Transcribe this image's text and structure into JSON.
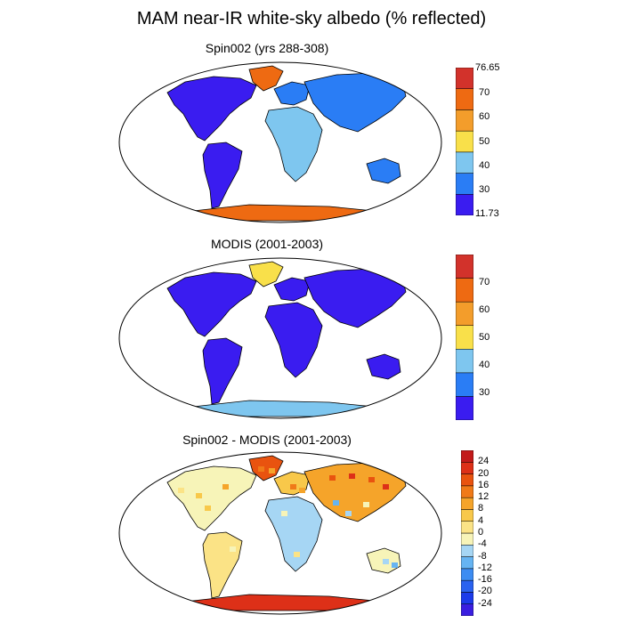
{
  "figure": {
    "title": "MAM near-IR white-sky albedo (% reflected)",
    "colors": {
      "ocean": "#ffffff",
      "outline": "#000000"
    }
  },
  "panels": [
    {
      "key": "spin",
      "title": "Spin002 (yrs 288-308)",
      "colorbar": {
        "labels": [
          "76.65",
          "70",
          "60",
          "50",
          "40",
          "30",
          "11.73"
        ],
        "colors": [
          "#3a1cf0",
          "#2a7df5",
          "#7ec6ef",
          "#f9e04a",
          "#f39d2b",
          "#ee6a12",
          "#d2322b"
        ]
      }
    },
    {
      "key": "modis",
      "title": "MODIS (2001-2003)",
      "colorbar": {
        "labels": [
          "70",
          "60",
          "50",
          "40",
          "30"
        ],
        "colors": [
          "#3a1cf0",
          "#2a7df5",
          "#7ec6ef",
          "#f9e04a",
          "#f39d2b",
          "#ee6a12",
          "#d2322b"
        ]
      }
    },
    {
      "key": "diff",
      "title": "Spin002 - MODIS (2001-2003)",
      "colorbar": {
        "labels": [
          "24",
          "20",
          "16",
          "12",
          "8",
          "4",
          "0",
          "-4",
          "-8",
          "-12",
          "-16",
          "-20",
          "-24"
        ],
        "colors": [
          "#3a1ee0",
          "#1c3bea",
          "#2a62f0",
          "#3c8cf2",
          "#66b4f2",
          "#a6d6f4",
          "#f7f4b8",
          "#fbe386",
          "#f8c84a",
          "#f5a42a",
          "#f07a18",
          "#e9530f",
          "#dd3018",
          "#c21a1a"
        ]
      }
    }
  ]
}
